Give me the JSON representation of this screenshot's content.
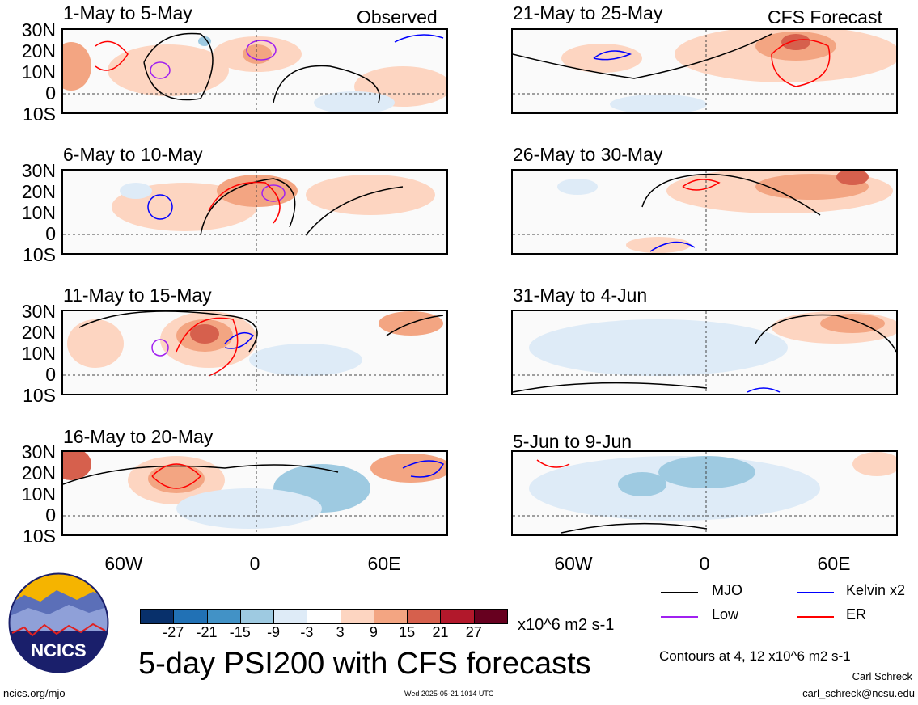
{
  "panels_left": [
    {
      "title": "1-May to 5-May"
    },
    {
      "title": "6-May to 10-May"
    },
    {
      "title": "11-May to 15-May"
    },
    {
      "title": "16-May to 20-May"
    }
  ],
  "panels_right": [
    {
      "title": "21-May to 25-May"
    },
    {
      "title": "26-May to 30-May"
    },
    {
      "title": "31-May to 4-Jun"
    },
    {
      "title": "5-Jun to 9-Jun"
    }
  ],
  "tags": {
    "observed": "Observed",
    "forecast": "CFS Forecast"
  },
  "lat_labels": [
    "30N",
    "20N",
    "10N",
    "0",
    "10S"
  ],
  "lon_labels": [
    "60W",
    "0",
    "60E"
  ],
  "colorbar": {
    "ticks": [
      "-27",
      "-21",
      "-15",
      "-9",
      "-3",
      "3",
      "9",
      "15",
      "21",
      "27"
    ],
    "colors": [
      "#08306b",
      "#2171b5",
      "#4292c6",
      "#9ecae1",
      "#deebf7",
      "#ffffff",
      "#fdd5c1",
      "#f3a582",
      "#d6604d",
      "#b2182b",
      "#67001f"
    ],
    "units": "x10^6 m2 s-1"
  },
  "legend": [
    {
      "name": "MJO",
      "color": "#000000"
    },
    {
      "name": "Kelvin x2",
      "color": "#0000ff"
    },
    {
      "name": "Low",
      "color": "#a020f0"
    },
    {
      "name": "ER",
      "color": "#ff0000"
    }
  ],
  "main_title": "5-day PSI200 with CFS forecasts",
  "contours_note": "Contours at 4, 12 x10^6 m2 s-1",
  "logo_text": "NCICS",
  "footer": {
    "url": "ncics.org/mjo",
    "timestamp": "Wed 2025-05-21 1014 UTC",
    "author": "Carl Schreck",
    "email": "carl_schreck@ncsu.edu"
  }
}
